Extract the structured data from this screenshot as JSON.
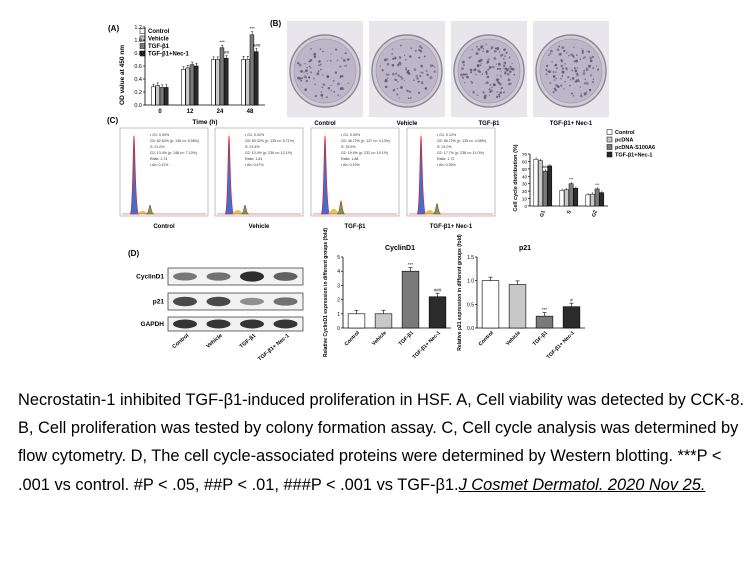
{
  "panels": {
    "a": {
      "letter": "(A)",
      "ylabel": "OD value at 450 nm",
      "xlabel": "Time (h)",
      "legend": [
        "Control",
        "Vehicle",
        "TGF-β1",
        "TGF-β1+Nec-1"
      ],
      "y_ticks": [
        "0.0",
        "0.2",
        "0.4",
        "0.6",
        "0.8",
        "1.0",
        "1.2"
      ],
      "x_ticks": [
        "0",
        "12",
        "24",
        "48"
      ],
      "sig": [
        "***",
        "##",
        "***",
        "###"
      ]
    },
    "b": {
      "letter": "(B)",
      "labels": [
        "Control",
        "Vehicle",
        "TGF-β1",
        "TGF-β1+ Nec-1"
      ]
    },
    "c": {
      "letter": "(C)",
      "histograms": [
        {
          "label": "Control",
          "stats": [
            "• G1: 0.00%",
            "G0: 62.63%  (p: 136 cv: 5.58%)",
            "S: 21.0%",
            "G2: 13.4%  (p: 248 cv: 7.10%)",
            "Ratio: 1.74",
            "• Ab: 0.11%"
          ]
        },
        {
          "label": "Vehicle",
          "stats": [
            "• G1: 0.02%",
            "G0: 60.32%  (p: 135 cv: 5.71%)",
            "S: 23.5%",
            "G2: 13.4%  (p: 236 cv: 12.1%)",
            "Ratio: 1.81",
            "• Ab: 0.47%"
          ]
        },
        {
          "label": "TGF-β1",
          "stats": [
            "• G1: 0.00%",
            "G0: 46.72%  (p: 137 cv: 4.13%)",
            "S: 29.9%",
            "G2: 19.9%  (p: 232 cv: 10.1%)",
            "Ratio: 1.88",
            "• Ab: 0.19%"
          ]
        },
        {
          "label": "TGF-β1+ Nec-1",
          "stats": [
            "• G1: 0.12%",
            "G0: 56.72%  (p: 135 cv: 4.08%)",
            "S: 24.0%",
            "G2: 17.7%  (p: 238 cv: 11.0%)",
            "Ratio: 1.72",
            "• Ab: 0.26%"
          ]
        }
      ],
      "distribution": {
        "ylabel": "Cell cycle distribution (%)",
        "legend": [
          "Control",
          "pcDNA",
          "pcDNA-S100A6",
          "TGF-β1+Nec-1"
        ],
        "y_ticks": [
          "0",
          "10",
          "20",
          "30",
          "40",
          "50",
          "60",
          "70"
        ],
        "x_ticks": [
          "G1",
          "S",
          "G2"
        ],
        "sig": [
          "###",
          "***",
          "***"
        ]
      }
    },
    "d": {
      "letter": "(D)",
      "blot_labels": [
        "CyclinD1",
        "p21",
        "GAPDH"
      ],
      "blot_lanes": [
        "Control",
        "Vehicle",
        "TGF-β1",
        "TGF-β1+ Nec-1"
      ],
      "cyclin": {
        "title": "CyclinD1",
        "ylabel": "Relative CyclinD1 expression in different groups (fold)",
        "y_ticks": [
          "0",
          "1",
          "2",
          "3",
          "4",
          "5"
        ],
        "x_ticks": [
          "Control",
          "Vehicle",
          "TGF-β1",
          "TGF-β1+ Nec-1"
        ],
        "sig": [
          "***",
          "###"
        ]
      },
      "p21": {
        "title": "p21",
        "ylabel": "Relative p21 expression in different groups (fold)",
        "y_ticks": [
          "0.0",
          "0.5",
          "1.0",
          "1.5"
        ],
        "x_ticks": [
          "Control",
          "Vehicle",
          "TGF-β1",
          "TGF-β1+ Nec-1"
        ],
        "sig": [
          "***",
          "#"
        ]
      }
    }
  },
  "caption": {
    "text": "Necrostatin-1 inhibited TGF-β1-induced proliferation in HSF. A, Cell viability was detected by CCK-8. B, Cell proliferation was tested by colony formation assay. C, Cell cycle analysis was determined by flow cytometry. D, The cell cycle-associated proteins were determined by Western blotting. ***P < .001 vs control. #P < .05, ##P < .01, ###P < .001 vs TGF-β1.",
    "citation": "J Cosmet Dermatol. 2020 Nov 25."
  },
  "chart_data": [
    {
      "panel": "A",
      "type": "bar",
      "title": "",
      "xlabel": "Time (h)",
      "ylabel": "OD value at 450 nm",
      "categories": [
        "0",
        "12",
        "24",
        "48"
      ],
      "ylim": [
        0,
        1.2
      ],
      "series": [
        {
          "name": "Control",
          "values": [
            0.28,
            0.55,
            0.7,
            0.7
          ],
          "color": "#ffffff"
        },
        {
          "name": "Vehicle",
          "values": [
            0.3,
            0.57,
            0.7,
            0.7
          ],
          "color": "#c8c8c8"
        },
        {
          "name": "TGF-β1",
          "values": [
            0.27,
            0.62,
            0.88,
            1.08
          ],
          "color": "#7a7a7a"
        },
        {
          "name": "TGF-β1+Nec-1",
          "values": [
            0.27,
            0.6,
            0.72,
            0.82
          ],
          "color": "#2b2b2b"
        }
      ],
      "errors": [
        0.04,
        0.04,
        0.04,
        0.05
      ]
    },
    {
      "panel": "C",
      "type": "bar",
      "title": "",
      "xlabel": "",
      "ylabel": "Cell cycle distribution (%)",
      "categories": [
        "G1",
        "S",
        "G2"
      ],
      "ylim": [
        0,
        70
      ],
      "series": [
        {
          "name": "Control",
          "values": [
            63,
            21,
            15
          ],
          "color": "#ffffff"
        },
        {
          "name": "pcDNA",
          "values": [
            61,
            22,
            16
          ],
          "color": "#c8c8c8"
        },
        {
          "name": "pcDNA-S100A6",
          "values": [
            47,
            30,
            23
          ],
          "color": "#7a7a7a"
        },
        {
          "name": "TGF-β1+Nec-1",
          "values": [
            54,
            24,
            18
          ],
          "color": "#2b2b2b"
        }
      ]
    },
    {
      "panel": "D",
      "type": "bar",
      "title": "CyclinD1",
      "xlabel": "",
      "ylabel": "Relative CyclinD1 expression in different groups (fold)",
      "categories": [
        "Control",
        "Vehicle",
        "TGF-β1",
        "TGF-β1+ Nec-1"
      ],
      "values": [
        1.0,
        1.0,
        4.0,
        2.2
      ],
      "ylim": [
        0,
        5
      ],
      "colors": [
        "#ffffff",
        "#c8c8c8",
        "#7a7a7a",
        "#2b2b2b"
      ]
    },
    {
      "panel": "D",
      "type": "bar",
      "title": "p21",
      "xlabel": "",
      "ylabel": "Relative p21 expression in different groups (fold)",
      "categories": [
        "Control",
        "Vehicle",
        "TGF-β1",
        "TGF-β1+ Nec-1"
      ],
      "values": [
        1.0,
        0.92,
        0.25,
        0.45
      ],
      "ylim": [
        0,
        1.5
      ],
      "colors": [
        "#ffffff",
        "#c8c8c8",
        "#7a7a7a",
        "#2b2b2b"
      ]
    }
  ]
}
